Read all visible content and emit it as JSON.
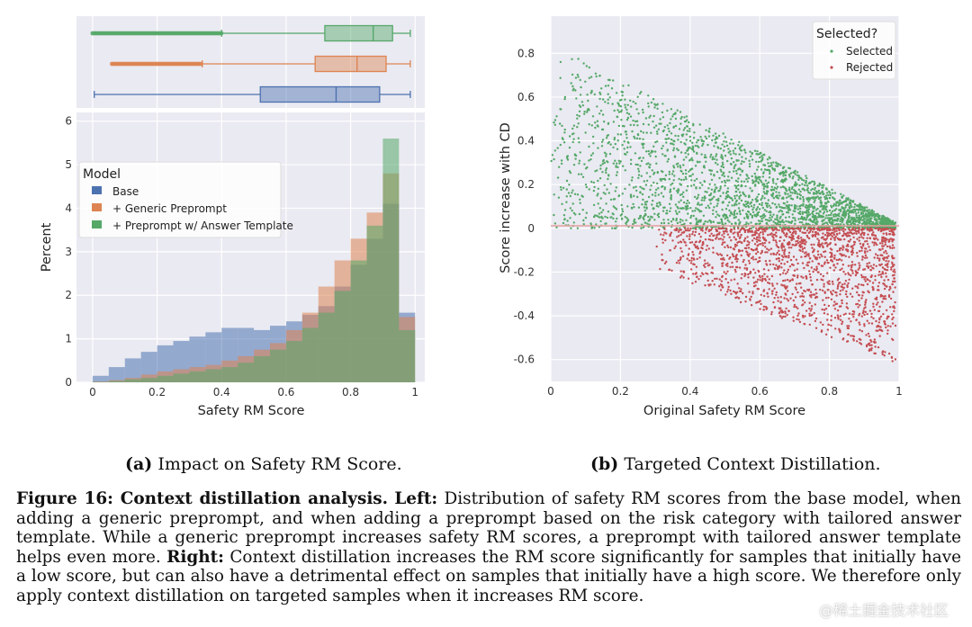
{
  "chart_data": [
    {
      "type": "boxplot",
      "panel": "left-top",
      "series": [
        {
          "name": "+ Preprompt w/ Answer Template",
          "color": "#55a868",
          "whisker_low": 0.4,
          "q1": 0.72,
          "median": 0.87,
          "q3": 0.93,
          "whisker_high": 0.985,
          "outlier_range": [
            0.0,
            0.4
          ]
        },
        {
          "name": "+ Generic Preprompt",
          "color": "#dd8452",
          "whisker_low": 0.34,
          "q1": 0.69,
          "median": 0.82,
          "q3": 0.91,
          "whisker_high": 0.985,
          "outlier_range": [
            0.06,
            0.34
          ]
        },
        {
          "name": "Base",
          "color": "#4c72b0",
          "whisker_low": 0.005,
          "q1": 0.52,
          "median": 0.755,
          "q3": 0.89,
          "whisker_high": 0.985,
          "outlier_range": []
        }
      ],
      "xlim": [
        -0.05,
        1.03
      ]
    },
    {
      "type": "histogram",
      "panel": "left",
      "xlabel": "Safety RM Score",
      "ylabel": "Percent",
      "xlim": [
        -0.05,
        1.03
      ],
      "ylim": [
        0,
        6.2
      ],
      "xticks": [
        "0",
        "0.2",
        "0.4",
        "0.6",
        "0.8",
        "1"
      ],
      "yticks": [
        "0",
        "1",
        "2",
        "3",
        "4",
        "5",
        "6"
      ],
      "grid": true,
      "legend_position": "upper-left",
      "legend_title": "Model",
      "series": [
        {
          "name": "Base",
          "color": "#4c72b0",
          "bin_centers": [
            0.025,
            0.075,
            0.125,
            0.175,
            0.225,
            0.275,
            0.325,
            0.375,
            0.425,
            0.475,
            0.525,
            0.575,
            0.625,
            0.675,
            0.725,
            0.775,
            0.825,
            0.875,
            0.925,
            0.975
          ],
          "values": [
            0.15,
            0.35,
            0.55,
            0.7,
            0.85,
            0.95,
            1.05,
            1.15,
            1.25,
            1.25,
            1.2,
            1.3,
            1.4,
            1.55,
            1.75,
            2.2,
            2.7,
            3.3,
            4.1,
            1.6
          ]
        },
        {
          "name": "+ Generic Preprompt",
          "color": "#dd8452",
          "bin_centers": [
            0.025,
            0.075,
            0.125,
            0.175,
            0.225,
            0.275,
            0.325,
            0.375,
            0.425,
            0.475,
            0.525,
            0.575,
            0.625,
            0.675,
            0.725,
            0.775,
            0.825,
            0.875,
            0.925,
            0.975
          ],
          "values": [
            0.02,
            0.05,
            0.1,
            0.18,
            0.25,
            0.3,
            0.35,
            0.4,
            0.5,
            0.6,
            0.75,
            0.9,
            1.2,
            1.6,
            2.2,
            2.8,
            3.3,
            3.9,
            4.8,
            1.5
          ]
        },
        {
          "name": "+ Preprompt w/ Answer Template",
          "color": "#55a868",
          "bin_centers": [
            0.025,
            0.075,
            0.125,
            0.175,
            0.225,
            0.275,
            0.325,
            0.375,
            0.425,
            0.475,
            0.525,
            0.575,
            0.625,
            0.675,
            0.725,
            0.775,
            0.825,
            0.875,
            0.925,
            0.975
          ],
          "values": [
            0.01,
            0.03,
            0.07,
            0.1,
            0.15,
            0.2,
            0.25,
            0.3,
            0.35,
            0.45,
            0.6,
            0.75,
            0.95,
            1.25,
            1.6,
            2.1,
            2.8,
            3.6,
            5.6,
            1.2
          ]
        }
      ]
    },
    {
      "type": "scatter",
      "panel": "right",
      "xlabel": "Original Safety RM Score",
      "ylabel": "Score increase with CD",
      "xlim": [
        0,
        1
      ],
      "ylim": [
        -0.7,
        0.97
      ],
      "xticks": [
        "0",
        "0.2",
        "0.4",
        "0.6",
        "0.8",
        "1"
      ],
      "yticks": [
        "-0.6",
        "-0.4",
        "-0.2",
        "0",
        "0.2",
        "0.4",
        "0.6",
        "0.8"
      ],
      "grid": true,
      "hline": 0,
      "legend_position": "upper-right",
      "legend_title": "Selected?",
      "series": [
        {
          "name": "Selected",
          "color": "#55a868",
          "envelope": "0 < y < 0.82*(1-x)"
        },
        {
          "name": "Rejected",
          "color": "#c44e52",
          "envelope": "-0.6*x < y < 0, concentrated x > 0.45"
        }
      ]
    }
  ],
  "subcaptions": {
    "a_tag": "(a)",
    "a_text": "Impact on Safety RM Score.",
    "b_tag": "(b)",
    "b_text": "Targeted Context Distillation."
  },
  "caption": {
    "label": "Figure 16: Context distillation analysis.",
    "left_tag": "Left:",
    "left_text": "Distribution of safety RM scores from the base model, when adding a generic preprompt, and when adding a preprompt based on the risk category with tailored answer template. While a generic preprompt increases safety RM scores, a preprompt with tailored answer template helps even more.",
    "right_tag": "Right:",
    "right_text": "Context distillation increases the RM score significantly for samples that initially have a low score, but can also have a detrimental effect on samples that initially have a high score. We therefore only apply context distillation on targeted samples when it increases RM score."
  },
  "watermark": "@稀土掘金技术社区"
}
